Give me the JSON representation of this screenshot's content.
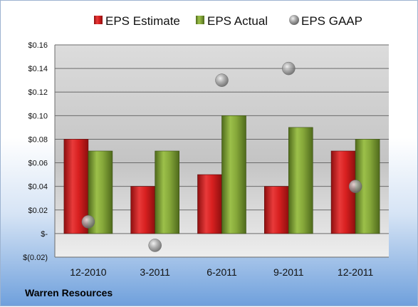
{
  "company": "Warren Resources",
  "colors": {
    "estimate": "#d42020",
    "actual": "#7fa032",
    "gaap": "#9a9a9a"
  },
  "chart_data": {
    "type": "bar",
    "categories": [
      "12-2010",
      "3-2011",
      "6-2011",
      "9-2011",
      "12-2011"
    ],
    "series": [
      {
        "name": "EPS Estimate",
        "type": "bar",
        "values": [
          0.08,
          0.04,
          0.05,
          0.04,
          0.07
        ]
      },
      {
        "name": "EPS Actual",
        "type": "bar",
        "values": [
          0.07,
          0.07,
          0.1,
          0.09,
          0.08
        ]
      },
      {
        "name": "EPS GAAP",
        "type": "scatter",
        "values": [
          0.01,
          -0.01,
          0.13,
          0.14,
          0.04
        ]
      }
    ],
    "ylim": [
      -0.02,
      0.16
    ],
    "yticks": [
      0.16,
      0.14,
      0.12,
      0.1,
      0.08,
      0.06,
      0.04,
      0.02,
      0,
      -0.02
    ],
    "ytick_labels": [
      "$0.16",
      "$0.14",
      "$0.12",
      "$0.10",
      "$0.08",
      "$0.06",
      "$0.04",
      "$0.02",
      "$-",
      "$(0.02)"
    ],
    "grid": true,
    "legend": "top"
  }
}
